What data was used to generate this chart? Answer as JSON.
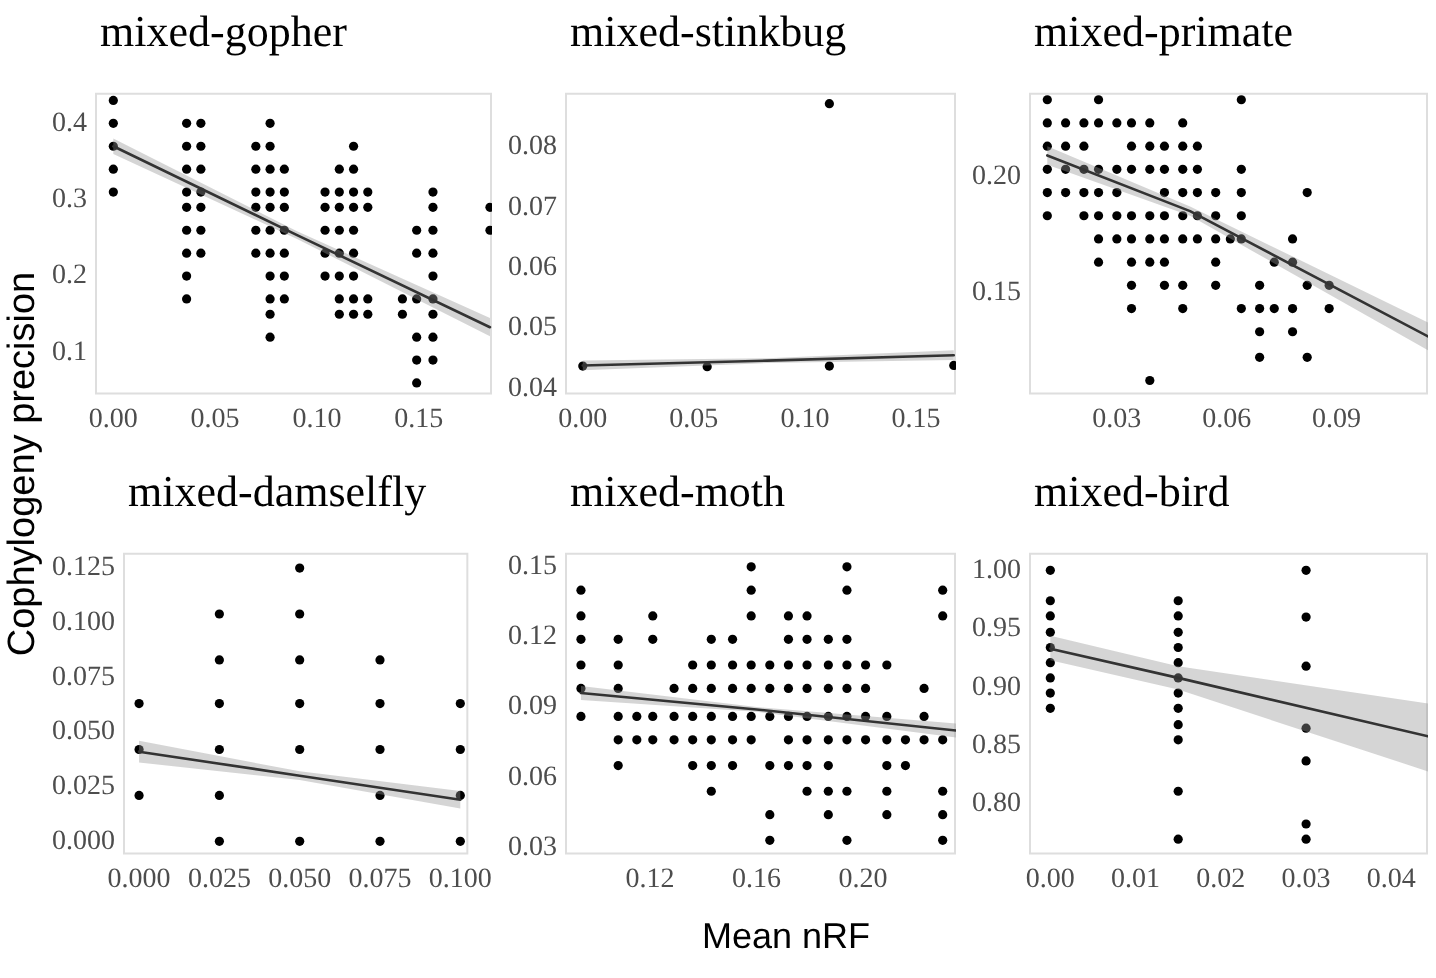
{
  "chart_data": [
    {
      "type": "scatter",
      "title": "mixed-gopher",
      "ylabel": "Cophylogeny precision",
      "xlim": [
        -0.009,
        0.186
      ],
      "ylim": [
        0.045,
        0.44
      ],
      "xticks": [
        {
          "value": 0,
          "label": "0.00"
        },
        0.05,
        {
          "value": 0.1,
          "label": "0.10"
        },
        0.15
      ],
      "yticks": [
        0.1,
        0.2,
        0.3,
        0.4
      ],
      "series": [
        {
          "type": "scatter",
          "marker": "circle",
          "color": "#000000",
          "x": [
            0,
            0,
            0,
            0,
            0,
            0.036,
            0.036,
            0.036,
            0.036,
            0.036,
            0.036,
            0.036,
            0.036,
            0.036,
            0.043,
            0.043,
            0.043,
            0.043,
            0.043,
            0.043,
            0.043,
            0.07,
            0.07,
            0.07,
            0.07,
            0.07,
            0.07,
            0.077,
            0.077,
            0.077,
            0.077,
            0.077,
            0.077,
            0.077,
            0.077,
            0.077,
            0.077,
            0.077,
            0.084,
            0.084,
            0.084,
            0.084,
            0.084,
            0.084,
            0.084,
            0.104,
            0.104,
            0.104,
            0.104,
            0.104,
            0.111,
            0.111,
            0.111,
            0.111,
            0.111,
            0.111,
            0.111,
            0.111,
            0.118,
            0.118,
            0.118,
            0.118,
            0.118,
            0.118,
            0.118,
            0.118,
            0.118,
            0.125,
            0.125,
            0.125,
            0.125,
            0.142,
            0.142,
            0.149,
            0.149,
            0.149,
            0.149,
            0.149,
            0.149,
            0.157,
            0.157,
            0.157,
            0.157,
            0.157,
            0.157,
            0.157,
            0.157,
            0.157,
            0.185,
            0.185
          ],
          "values": [
            0.43,
            0.4,
            0.37,
            0.34,
            0.31,
            0.4,
            0.37,
            0.34,
            0.31,
            0.29,
            0.26,
            0.23,
            0.2,
            0.17,
            0.4,
            0.37,
            0.34,
            0.31,
            0.29,
            0.26,
            0.23,
            0.37,
            0.34,
            0.31,
            0.29,
            0.26,
            0.23,
            0.4,
            0.37,
            0.34,
            0.31,
            0.29,
            0.26,
            0.23,
            0.2,
            0.17,
            0.15,
            0.12,
            0.34,
            0.31,
            0.29,
            0.26,
            0.23,
            0.2,
            0.17,
            0.31,
            0.29,
            0.26,
            0.23,
            0.2,
            0.34,
            0.31,
            0.29,
            0.26,
            0.23,
            0.2,
            0.17,
            0.15,
            0.37,
            0.34,
            0.31,
            0.29,
            0.26,
            0.23,
            0.2,
            0.17,
            0.15,
            0.31,
            0.29,
            0.17,
            0.15,
            0.17,
            0.15,
            0.26,
            0.23,
            0.17,
            0.12,
            0.09,
            0.06,
            0.31,
            0.29,
            0.26,
            0.23,
            0.2,
            0.17,
            0.15,
            0.12,
            0.09,
            0.29,
            0.26
          ]
        },
        {
          "type": "line",
          "color": "#333333",
          "x": [
            0,
            0.09,
            0.185
          ],
          "values": [
            0.37,
            0.254,
            0.133
          ],
          "lower": [
            0.36,
            0.249,
            0.121
          ],
          "upper": [
            0.38,
            0.259,
            0.145
          ]
        }
      ]
    },
    {
      "type": "scatter",
      "title": "mixed-stinkbug",
      "xlim": [
        -0.008,
        0.168
      ],
      "ylim": [
        0.039,
        0.089
      ],
      "xticks": [
        {
          "value": 0,
          "label": "0.00"
        },
        0.05,
        {
          "value": 0.1,
          "label": "0.10"
        },
        0.15
      ],
      "yticks": [
        0.04,
        0.05,
        0.06,
        0.07,
        0.08
      ],
      "series": [
        {
          "type": "scatter",
          "marker": "circle",
          "color": "#000000",
          "x": [
            0,
            0.056,
            0.111,
            0.111,
            0.167
          ],
          "values": [
            0.0437,
            0.0436,
            0.0437,
            0.0872,
            0.0438
          ]
        },
        {
          "type": "line",
          "color": "#333333",
          "x": [
            0,
            0.083,
            0.167
          ],
          "values": [
            0.0438,
            0.0446,
            0.0455
          ],
          "lower": [
            0.043,
            0.0442,
            0.0447
          ],
          "upper": [
            0.0446,
            0.045,
            0.0463
          ]
        }
      ]
    },
    {
      "type": "scatter",
      "title": "mixed-primate",
      "xlim": [
        0.006,
        0.115
      ],
      "ylim": [
        0.106,
        0.236
      ],
      "xticks": [
        0.03,
        0.06,
        0.09
      ],
      "yticks": [
        {
          "value": 0.15,
          "label": "0.15"
        },
        {
          "value": 0.2,
          "label": "0.20"
        }
      ],
      "series": [
        {
          "type": "scatter",
          "marker": "circle",
          "color": "#000000",
          "x": [
            0.011,
            0.025,
            0.064,
            0.011,
            0.016,
            0.021,
            0.025,
            0.03,
            0.034,
            0.039,
            0.048,
            0.011,
            0.016,
            0.021,
            0.034,
            0.039,
            0.043,
            0.048,
            0.052,
            0.011,
            0.016,
            0.021,
            0.025,
            0.03,
            0.034,
            0.039,
            0.043,
            0.048,
            0.052,
            0.064,
            0.011,
            0.016,
            0.021,
            0.025,
            0.03,
            0.043,
            0.048,
            0.052,
            0.057,
            0.064,
            0.082,
            0.011,
            0.021,
            0.025,
            0.03,
            0.034,
            0.039,
            0.043,
            0.048,
            0.052,
            0.057,
            0.064,
            0.025,
            0.03,
            0.034,
            0.039,
            0.043,
            0.048,
            0.052,
            0.057,
            0.061,
            0.064,
            0.078,
            0.025,
            0.034,
            0.039,
            0.043,
            0.057,
            0.073,
            0.078,
            0.034,
            0.043,
            0.048,
            0.057,
            0.069,
            0.082,
            0.088,
            0.034,
            0.048,
            0.064,
            0.069,
            0.073,
            0.078,
            0.088,
            0.069,
            0.078,
            0.069,
            0.082,
            0.039
          ],
          "values": [
            0.233,
            0.233,
            0.233,
            0.223,
            0.223,
            0.223,
            0.223,
            0.223,
            0.223,
            0.223,
            0.223,
            0.213,
            0.213,
            0.213,
            0.213,
            0.213,
            0.213,
            0.213,
            0.213,
            0.203,
            0.203,
            0.203,
            0.203,
            0.203,
            0.203,
            0.203,
            0.203,
            0.203,
            0.203,
            0.203,
            0.193,
            0.193,
            0.193,
            0.193,
            0.193,
            0.193,
            0.193,
            0.193,
            0.193,
            0.193,
            0.193,
            0.183,
            0.183,
            0.183,
            0.183,
            0.183,
            0.183,
            0.183,
            0.183,
            0.183,
            0.183,
            0.183,
            0.173,
            0.173,
            0.173,
            0.173,
            0.173,
            0.173,
            0.173,
            0.173,
            0.173,
            0.173,
            0.173,
            0.163,
            0.163,
            0.163,
            0.163,
            0.163,
            0.163,
            0.163,
            0.153,
            0.153,
            0.153,
            0.153,
            0.153,
            0.153,
            0.153,
            0.143,
            0.143,
            0.143,
            0.143,
            0.143,
            0.143,
            0.143,
            0.133,
            0.133,
            0.122,
            0.122,
            0.112
          ]
        },
        {
          "type": "line",
          "color": "#333333",
          "x": [
            0.011,
            0.05,
            0.115
          ],
          "values": [
            0.209,
            0.185,
            0.131
          ],
          "lower": [
            0.205,
            0.183,
            0.125
          ],
          "upper": [
            0.213,
            0.187,
            0.137
          ]
        }
      ]
    },
    {
      "type": "scatter",
      "title": "mixed-damselfly",
      "xlim": [
        -0.005,
        0.1025
      ],
      "ylim": [
        -0.006,
        0.132
      ],
      "xticks": [
        {
          "value": 0,
          "label": "0.000"
        },
        0.025,
        {
          "value": 0.05,
          "label": "0.050"
        },
        0.075,
        {
          "value": 0.1,
          "label": "0.100"
        }
      ],
      "yticks": [
        {
          "value": 0,
          "label": "0.000"
        },
        0.025,
        {
          "value": 0.05,
          "label": "0.050"
        },
        0.075,
        {
          "value": 0.1,
          "label": "0.100"
        },
        0.125
      ],
      "series": [
        {
          "type": "scatter",
          "marker": "circle",
          "color": "#000000",
          "x": [
            0,
            0,
            0,
            0.025,
            0.025,
            0.025,
            0.025,
            0.025,
            0.025,
            0.05,
            0.05,
            0.05,
            0.05,
            0.05,
            0.05,
            0.075,
            0.075,
            0.075,
            0.075,
            0.075,
            0.1,
            0.1,
            0.1,
            0.1
          ],
          "values": [
            0.063,
            0.042,
            0.021,
            0.104,
            0.083,
            0.063,
            0.042,
            0.021,
            0,
            0.125,
            0.104,
            0.083,
            0.063,
            0.042,
            0,
            0.083,
            0.063,
            0.042,
            0.021,
            0,
            0.063,
            0.042,
            0.021,
            0
          ]
        },
        {
          "type": "line",
          "color": "#333333",
          "x": [
            0,
            0.05,
            0.1
          ],
          "values": [
            0.041,
            0.03,
            0.019
          ],
          "lower": [
            0.036,
            0.028,
            0.015
          ],
          "upper": [
            0.046,
            0.032,
            0.023
          ]
        }
      ]
    },
    {
      "type": "scatter",
      "title": "mixed-moth",
      "xlabel": "Mean nRF",
      "xlim": [
        0.088,
        0.235
      ],
      "ylim": [
        0.027,
        0.156
      ],
      "xticks": [
        0.12,
        0.16,
        {
          "value": 0.2,
          "label": "0.20"
        }
      ],
      "yticks": [
        0.03,
        {
          "value": 0.06,
          "label": "0.06"
        },
        0.09,
        0.12,
        0.15
      ],
      "series": [
        {
          "type": "scatter",
          "marker": "circle",
          "color": "#000000",
          "x": [
            0.158,
            0.194,
            0.094,
            0.158,
            0.194,
            0.23,
            0.094,
            0.121,
            0.158,
            0.172,
            0.179,
            0.23,
            0.094,
            0.108,
            0.121,
            0.143,
            0.151,
            0.172,
            0.179,
            0.187,
            0.194,
            0.094,
            0.108,
            0.136,
            0.143,
            0.151,
            0.158,
            0.165,
            0.172,
            0.179,
            0.187,
            0.194,
            0.201,
            0.209,
            0.094,
            0.108,
            0.129,
            0.136,
            0.143,
            0.151,
            0.158,
            0.165,
            0.172,
            0.179,
            0.187,
            0.194,
            0.201,
            0.223,
            0.094,
            0.108,
            0.115,
            0.121,
            0.129,
            0.136,
            0.143,
            0.151,
            0.158,
            0.165,
            0.172,
            0.179,
            0.187,
            0.194,
            0.201,
            0.209,
            0.223,
            0.108,
            0.115,
            0.121,
            0.129,
            0.136,
            0.143,
            0.151,
            0.158,
            0.172,
            0.179,
            0.187,
            0.194,
            0.201,
            0.209,
            0.216,
            0.223,
            0.23,
            0.108,
            0.136,
            0.143,
            0.151,
            0.165,
            0.172,
            0.179,
            0.187,
            0.209,
            0.216,
            0.143,
            0.179,
            0.187,
            0.194,
            0.209,
            0.23,
            0.165,
            0.187,
            0.209,
            0.23,
            0.165,
            0.194,
            0.23
          ],
          "values": [
            0.15,
            0.15,
            0.14,
            0.14,
            0.14,
            0.14,
            0.129,
            0.129,
            0.129,
            0.129,
            0.129,
            0.129,
            0.119,
            0.119,
            0.119,
            0.119,
            0.119,
            0.119,
            0.119,
            0.119,
            0.119,
            0.108,
            0.108,
            0.108,
            0.108,
            0.108,
            0.108,
            0.108,
            0.108,
            0.108,
            0.108,
            0.108,
            0.108,
            0.108,
            0.098,
            0.098,
            0.098,
            0.098,
            0.098,
            0.098,
            0.098,
            0.098,
            0.098,
            0.098,
            0.098,
            0.098,
            0.098,
            0.098,
            0.086,
            0.086,
            0.086,
            0.086,
            0.086,
            0.086,
            0.086,
            0.086,
            0.086,
            0.086,
            0.086,
            0.086,
            0.086,
            0.086,
            0.086,
            0.086,
            0.086,
            0.076,
            0.076,
            0.076,
            0.076,
            0.076,
            0.076,
            0.076,
            0.076,
            0.076,
            0.076,
            0.076,
            0.076,
            0.076,
            0.076,
            0.076,
            0.076,
            0.076,
            0.065,
            0.065,
            0.065,
            0.065,
            0.065,
            0.065,
            0.065,
            0.065,
            0.065,
            0.065,
            0.054,
            0.054,
            0.054,
            0.054,
            0.054,
            0.054,
            0.044,
            0.044,
            0.044,
            0.044,
            0.033,
            0.033,
            0.033
          ]
        },
        {
          "type": "line",
          "color": "#333333",
          "x": [
            0.094,
            0.16,
            0.235
          ],
          "values": [
            0.096,
            0.089,
            0.08
          ],
          "lower": [
            0.093,
            0.088,
            0.077
          ],
          "upper": [
            0.099,
            0.09,
            0.083
          ]
        }
      ]
    },
    {
      "type": "scatter",
      "title": "mixed-bird",
      "xlim": [
        -0.0025,
        0.0443
      ],
      "ylim": [
        0.757,
        1.015
      ],
      "xticks": [
        {
          "value": 0,
          "label": "0.00"
        },
        0.01,
        0.02,
        0.03,
        0.04
      ],
      "yticks": [
        {
          "value": 0.8,
          "label": "0.80"
        },
        0.85,
        {
          "value": 0.9,
          "label": "0.90"
        },
        0.95,
        {
          "value": 1,
          "label": "1.00"
        }
      ],
      "series": [
        {
          "type": "scatter",
          "marker": "circle",
          "color": "#000000",
          "x": [
            0,
            0,
            0,
            0,
            0,
            0,
            0,
            0,
            0,
            0.015,
            0.015,
            0.015,
            0.015,
            0.015,
            0.015,
            0.015,
            0.015,
            0.015,
            0.015,
            0.015,
            0.015,
            0.03,
            0.03,
            0.03,
            0.03,
            0.03,
            0.03,
            0.03
          ],
          "values": [
            1.0,
            0.974,
            0.961,
            0.947,
            0.934,
            0.921,
            0.908,
            0.895,
            0.882,
            0.974,
            0.961,
            0.947,
            0.934,
            0.921,
            0.908,
            0.895,
            0.882,
            0.868,
            0.855,
            0.811,
            0.77,
            1.0,
            0.96,
            0.918,
            0.865,
            0.837,
            0.783,
            0.77
          ]
        },
        {
          "type": "line",
          "color": "#333333",
          "x": [
            0,
            0.015,
            0.0443
          ],
          "values": [
            0.933,
            0.908,
            0.858
          ],
          "lower": [
            0.923,
            0.898,
            0.828
          ],
          "upper": [
            0.944,
            0.918,
            0.886
          ]
        }
      ]
    }
  ]
}
